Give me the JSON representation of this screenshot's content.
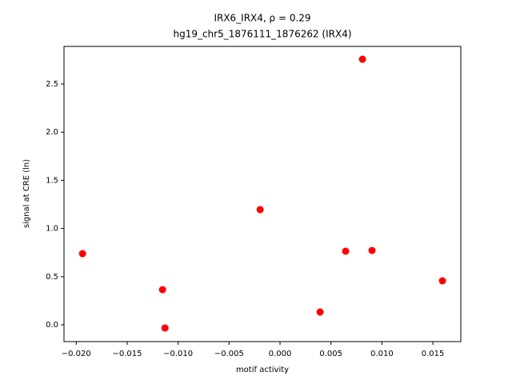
{
  "chart_data": {
    "type": "scatter",
    "title": "IRX6_IRX4, ρ = 0.29",
    "subtitle": "hg19_chr5_1876111_1876262 (IRX4)",
    "x_label": "motif activity",
    "y_label": "signal at CRE (ln)",
    "color": "#ff0000",
    "x": [
      -0.01938,
      -0.01153,
      -0.01129,
      -0.00195,
      0.00393,
      0.00644,
      0.00809,
      0.00903,
      0.01594
    ],
    "values": [
      0.739,
      0.365,
      -0.033,
      1.196,
      0.133,
      0.764,
      2.757,
      0.772,
      0.457
    ],
    "xlim": [
      -0.0212,
      0.01774
    ],
    "ylim": [
      -0.174,
      2.89
    ],
    "xticks": [
      {
        "value": -0.02,
        "label": "−0.020"
      },
      {
        "value": -0.015,
        "label": "−0.015"
      },
      {
        "value": -0.01,
        "label": "−0.010"
      },
      {
        "value": -0.005,
        "label": "−0.005"
      },
      {
        "value": 0,
        "label": "0.000"
      },
      0.005,
      {
        "value": 0.01,
        "label": "0.010"
      },
      0.015
    ],
    "yticks": [
      {
        "value": 0,
        "label": "0.0"
      },
      0.5,
      {
        "value": 1,
        "label": "1.0"
      },
      1.5,
      {
        "value": 2,
        "label": "2.0"
      },
      2.5
    ]
  }
}
